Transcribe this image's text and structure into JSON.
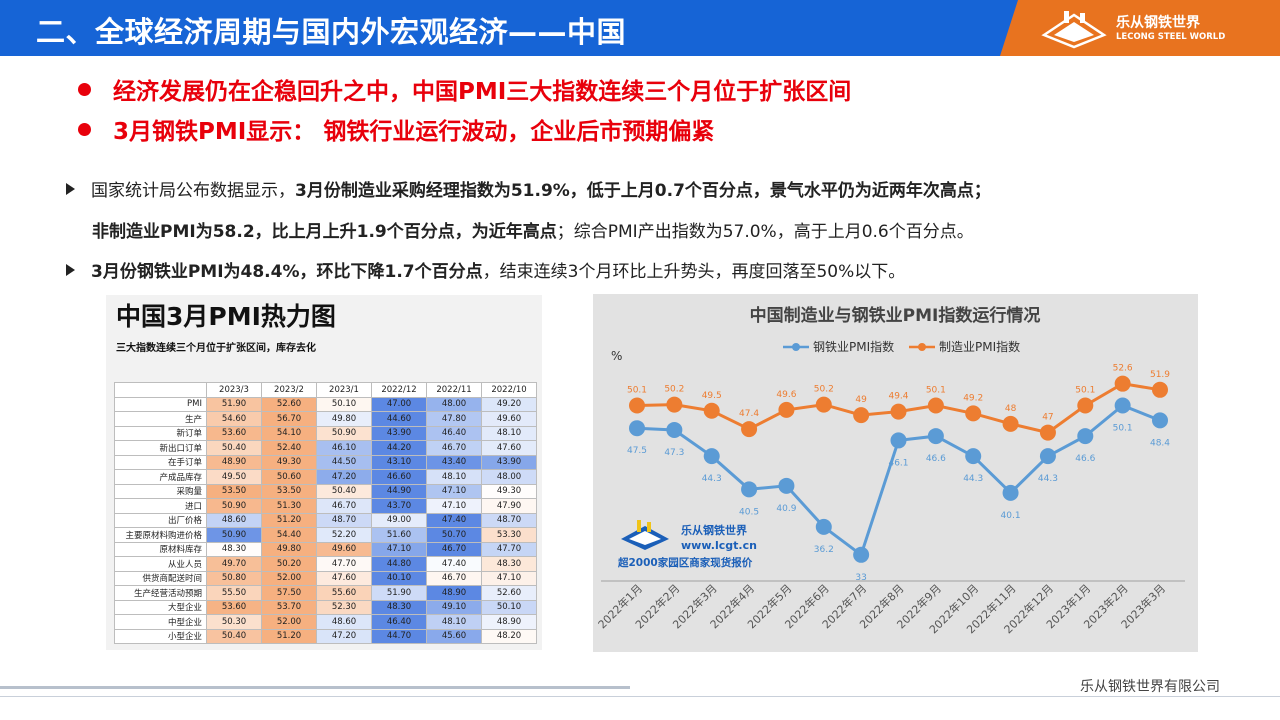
{
  "header": {
    "title": "二、全球经济周期与国内外宏观经济——中国",
    "logo_cn": "乐从钢铁世界",
    "logo_en": "LECONG STEEL WORLD"
  },
  "headlines": [
    "经济发展仍在企稳回升之中，中国PMI三大指数连续三个月位于扩张区间",
    "3月钢铁PMI显示： 钢铁行业运行波动，企业后市预期偏紧"
  ],
  "bullets": {
    "b1_pre": "国家统计局公布数据显示，",
    "b1_bold": "3月份制造业采购经理指数为51.9%，低于上月0.7个百分点，景气水平仍为近两年次高点；",
    "b1_l2_bold": "非制造业PMI为58.2，比上月上升1.9个百分点，为近年高点",
    "b1_l2_post": "；综合PMI产出指数为57.0%，高于上月0.6个百分点。",
    "b2_bold": "3月份钢铁业PMI为48.4%，环比下降1.7个百分点",
    "b2_post": "，结束连续3个月环比上升势头，再度回落至50%以下。"
  },
  "heatmap": {
    "title": "中国3月PMI热力图",
    "subtitle": "三大指数连续三个月位于扩张区间，库存去化",
    "columns": [
      "2023/3",
      "2023/2",
      "2023/1",
      "2022/12",
      "2022/11",
      "2022/10"
    ],
    "rows": [
      {
        "label": "PMI",
        "values": [
          "51.90",
          "52.60",
          "50.10",
          "47.00",
          "48.00",
          "49.20"
        ]
      },
      {
        "label": "生产",
        "values": [
          "54.60",
          "56.70",
          "49.80",
          "44.60",
          "47.80",
          "49.60"
        ]
      },
      {
        "label": "新订单",
        "values": [
          "53.60",
          "54.10",
          "50.90",
          "43.90",
          "46.40",
          "48.10"
        ]
      },
      {
        "label": "新出口订单",
        "values": [
          "50.40",
          "52.40",
          "46.10",
          "44.20",
          "46.70",
          "47.60"
        ]
      },
      {
        "label": "在手订单",
        "values": [
          "48.90",
          "49.30",
          "44.50",
          "43.10",
          "43.40",
          "43.90"
        ]
      },
      {
        "label": "产成品库存",
        "values": [
          "49.50",
          "50.60",
          "47.20",
          "46.60",
          "48.10",
          "48.00"
        ]
      },
      {
        "label": "采购量",
        "values": [
          "53.50",
          "53.50",
          "50.40",
          "44.90",
          "47.10",
          "49.30"
        ]
      },
      {
        "label": "进口",
        "values": [
          "50.90",
          "51.30",
          "46.70",
          "43.70",
          "47.10",
          "47.90"
        ]
      },
      {
        "label": "出厂价格",
        "values": [
          "48.60",
          "51.20",
          "48.70",
          "49.00",
          "47.40",
          "48.70"
        ]
      },
      {
        "label": "主要原材料购进价格",
        "values": [
          "50.90",
          "54.40",
          "52.20",
          "51.60",
          "50.70",
          "53.30"
        ]
      },
      {
        "label": "原材料库存",
        "values": [
          "48.30",
          "49.80",
          "49.60",
          "47.10",
          "46.70",
          "47.70"
        ]
      },
      {
        "label": "从业人员",
        "values": [
          "49.70",
          "50.20",
          "47.70",
          "44.80",
          "47.40",
          "48.30"
        ]
      },
      {
        "label": "供货商配送时间",
        "values": [
          "50.80",
          "52.00",
          "47.60",
          "40.10",
          "46.70",
          "47.10"
        ]
      },
      {
        "label": "生产经营活动预期",
        "values": [
          "55.50",
          "57.50",
          "55.60",
          "51.90",
          "48.90",
          "52.60"
        ]
      },
      {
        "label": "大型企业",
        "values": [
          "53.60",
          "53.70",
          "52.30",
          "48.30",
          "49.10",
          "50.10"
        ]
      },
      {
        "label": "中型企业",
        "values": [
          "50.30",
          "52.00",
          "48.60",
          "46.40",
          "48.10",
          "48.90"
        ]
      },
      {
        "label": "小型企业",
        "values": [
          "50.40",
          "51.20",
          "47.20",
          "44.70",
          "45.60",
          "48.20"
        ]
      }
    ],
    "colors": {
      "high": "#f4a26a",
      "low": "#4a7be0"
    }
  },
  "chart_data": {
    "type": "line",
    "title": "中国制造业与钢铁业PMI指数运行情况",
    "ylabel": "%",
    "x": [
      "2022年1月",
      "2022年2月",
      "2022年3月",
      "2022年4月",
      "2022年5月",
      "2022年6月",
      "2022年7月",
      "2022年8月",
      "2022年9月",
      "2022年10月",
      "2022年11月",
      "2022年12月",
      "2023年1月",
      "2023年2月",
      "2023年3月"
    ],
    "series": [
      {
        "name": "钢铁业PMI指数",
        "color": "#5b9bd5",
        "values": [
          47.5,
          47.3,
          44.3,
          40.5,
          40.9,
          36.2,
          33,
          46.1,
          46.6,
          44.3,
          40.1,
          44.3,
          46.6,
          50.1,
          48.4
        ]
      },
      {
        "name": "制造业PMI指数",
        "color": "#ed7d31",
        "values": [
          50.1,
          50.2,
          49.5,
          47.4,
          49.6,
          50.2,
          49,
          49.4,
          50.1,
          49.2,
          48,
          47,
          50.1,
          52.6,
          51.9
        ]
      }
    ],
    "ylim": [
      30,
      56
    ],
    "grid": false,
    "legend": "top"
  },
  "watermark": {
    "brand": "乐从钢铁世界",
    "url": "www.lcgt.cn",
    "tagline": "超2000家园区商家现货报价"
  },
  "footer": {
    "company": "乐从钢铁世界有限公司"
  }
}
